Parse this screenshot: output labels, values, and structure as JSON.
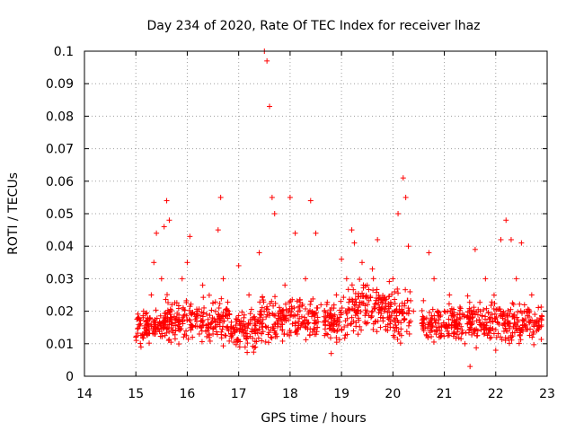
{
  "chart_data": {
    "type": "scatter",
    "title": "Day 234 of 2020, Rate Of TEC Index for receiver lhaz",
    "xlabel": "GPS time / hours",
    "ylabel": "ROTI / TECUs",
    "xlim": [
      14,
      23
    ],
    "ylim": [
      0,
      0.1
    ],
    "grid": true,
    "marker": "+",
    "color": "#ff0000",
    "x_ticks": [
      "14",
      "15",
      "16",
      "17",
      "18",
      "19",
      "20",
      "21",
      "22",
      "23"
    ],
    "y_ticks": [
      "0",
      "0.01",
      "0.02",
      "0.03",
      "0.04",
      "0.05",
      "0.06",
      "0.07",
      "0.08",
      "0.09",
      "0.1"
    ],
    "series": [
      {
        "name": "ROTI",
        "x": [
          15.0,
          15.05,
          15.1,
          15.15,
          15.2,
          15.3,
          15.35,
          15.4,
          15.5,
          15.55,
          15.6,
          15.65,
          15.7,
          15.8,
          15.9,
          16.0,
          16.05,
          16.1,
          16.2,
          16.3,
          16.4,
          16.5,
          16.6,
          16.65,
          16.7,
          16.8,
          16.9,
          17.0,
          17.1,
          17.2,
          17.3,
          17.4,
          17.5,
          17.55,
          17.6,
          17.65,
          17.7,
          17.8,
          17.9,
          18.0,
          18.1,
          18.2,
          18.3,
          18.4,
          18.5,
          18.6,
          18.7,
          18.8,
          18.9,
          19.0,
          19.1,
          19.2,
          19.25,
          19.3,
          19.4,
          19.5,
          19.6,
          19.7,
          19.8,
          19.9,
          20.0,
          20.1,
          20.2,
          20.25,
          20.3,
          20.4,
          20.6,
          20.7,
          20.8,
          20.9,
          21.0,
          21.1,
          21.2,
          21.3,
          21.4,
          21.5,
          21.6,
          21.7,
          21.8,
          21.9,
          22.0,
          22.1,
          22.2,
          22.3,
          22.4,
          22.5,
          22.6,
          22.7,
          22.8
        ],
        "y": [
          0.012,
          0.018,
          0.009,
          0.02,
          0.015,
          0.025,
          0.035,
          0.044,
          0.03,
          0.046,
          0.054,
          0.048,
          0.022,
          0.018,
          0.03,
          0.035,
          0.043,
          0.012,
          0.02,
          0.028,
          0.016,
          0.013,
          0.045,
          0.055,
          0.03,
          0.02,
          0.015,
          0.034,
          0.018,
          0.025,
          0.014,
          0.038,
          0.1,
          0.097,
          0.083,
          0.055,
          0.05,
          0.02,
          0.028,
          0.055,
          0.044,
          0.015,
          0.03,
          0.054,
          0.044,
          0.022,
          0.018,
          0.007,
          0.025,
          0.036,
          0.03,
          0.045,
          0.041,
          0.02,
          0.035,
          0.028,
          0.033,
          0.042,
          0.024,
          0.018,
          0.03,
          0.05,
          0.061,
          0.055,
          0.04,
          0.02,
          0.018,
          0.038,
          0.03,
          0.012,
          0.02,
          0.025,
          0.015,
          0.018,
          0.01,
          0.003,
          0.039,
          0.02,
          0.03,
          0.014,
          0.008,
          0.042,
          0.048,
          0.042,
          0.03,
          0.041,
          0.02,
          0.025,
          0.014
        ]
      }
    ],
    "density_bands": [
      {
        "x": [
          15.0,
          15.55
        ],
        "y": [
          0.008,
          0.022
        ]
      },
      {
        "x": [
          15.55,
          16.8
        ],
        "y": [
          0.008,
          0.026
        ]
      },
      {
        "x": [
          16.8,
          17.4
        ],
        "y": [
          0.006,
          0.023
        ]
      },
      {
        "x": [
          17.4,
          18.55
        ],
        "y": [
          0.008,
          0.027
        ]
      },
      {
        "x": [
          18.65,
          19.1
        ],
        "y": [
          0.008,
          0.026
        ]
      },
      {
        "x": [
          19.1,
          20.0
        ],
        "y": [
          0.01,
          0.032
        ]
      },
      {
        "x": [
          20.0,
          20.35
        ],
        "y": [
          0.008,
          0.03
        ]
      },
      {
        "x": [
          20.55,
          21.3
        ],
        "y": [
          0.009,
          0.024
        ]
      },
      {
        "x": [
          21.3,
          22.2
        ],
        "y": [
          0.007,
          0.026
        ]
      },
      {
        "x": [
          22.2,
          22.9
        ],
        "y": [
          0.008,
          0.024
        ]
      }
    ]
  }
}
